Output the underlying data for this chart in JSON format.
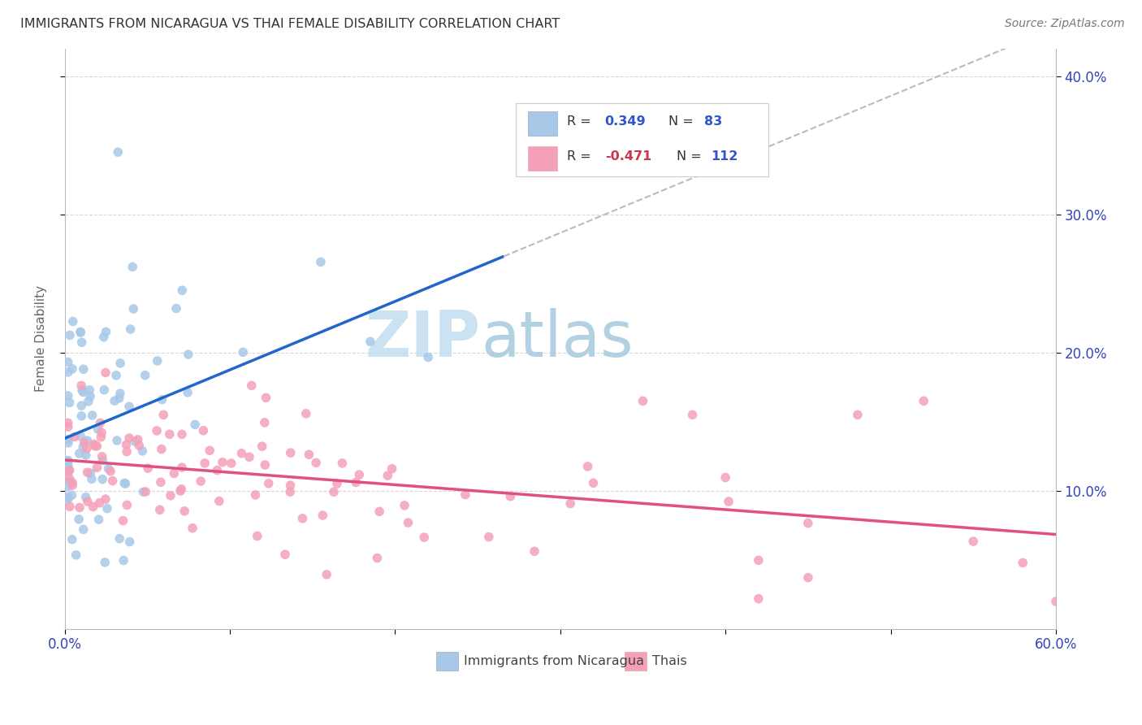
{
  "title": "IMMIGRANTS FROM NICARAGUA VS THAI FEMALE DISABILITY CORRELATION CHART",
  "source": "Source: ZipAtlas.com",
  "ylabel": "Female Disability",
  "xlim": [
    0.0,
    0.6
  ],
  "ylim": [
    0.0,
    0.42
  ],
  "xtick_vals": [
    0.0,
    0.1,
    0.2,
    0.3,
    0.4,
    0.5,
    0.6
  ],
  "xticklabels": [
    "0.0%",
    "",
    "",
    "",
    "",
    "",
    "60.0%"
  ],
  "ytick_vals": [
    0.1,
    0.2,
    0.3,
    0.4
  ],
  "ytick_labels": [
    "10.0%",
    "20.0%",
    "30.0%",
    "40.0%"
  ],
  "blue_color": "#a8c8e8",
  "pink_color": "#f4a0b8",
  "blue_line_color": "#2266cc",
  "pink_line_color": "#e05080",
  "dashed_color": "#bbbbbb",
  "R_blue": 0.349,
  "N_blue": 83,
  "R_pink": -0.471,
  "N_pink": 112,
  "legend_label_blue": "Immigrants from Nicaragua",
  "legend_label_pink": "Thais",
  "watermark_zip": "ZIP",
  "watermark_atlas": "atlas"
}
